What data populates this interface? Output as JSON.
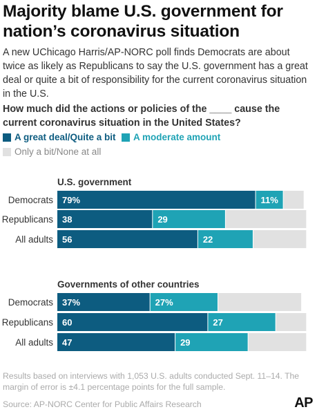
{
  "header": {
    "title": "Majority blame U.S. government for nation’s coronavirus situation",
    "subtitle": "A new UChicago Harris/AP-NORC poll finds Democrats are about twice as likely as Republicans to say the U.S. government has a great deal or quite a bit of responsibility for the current coronavirus situation in the U.S.",
    "question": "How much did the actions or policies of the ____ cause the current coronavirus situation in the United States?"
  },
  "legend": {
    "great": "A great deal/Quite a bit",
    "moderate": "A moderate amount",
    "little": "Only a bit/None at all"
  },
  "colors": {
    "great": "#0d5c80",
    "moderate": "#1fa3b5",
    "little": "#e1e1e1"
  },
  "chart_data": [
    {
      "type": "bar",
      "stacked": true,
      "orientation": "horizontal",
      "title": "U.S. government",
      "categories": [
        "Democrats",
        "Republicans",
        "All adults"
      ],
      "series": [
        {
          "name": "A great deal/Quite a bit",
          "values": [
            79,
            38,
            56
          ],
          "labels": [
            "79%",
            "38",
            "56"
          ]
        },
        {
          "name": "A moderate amount",
          "values": [
            11,
            29,
            22
          ],
          "labels": [
            "11%",
            "29",
            "22"
          ]
        },
        {
          "name": "Only a bit/None at all",
          "values": [
            8,
            32,
            21
          ]
        }
      ],
      "xlim": [
        0,
        100
      ]
    },
    {
      "type": "bar",
      "stacked": true,
      "orientation": "horizontal",
      "title": "Governments of other countries",
      "categories": [
        "Democrats",
        "Republicans",
        "All adults"
      ],
      "series": [
        {
          "name": "A great deal/Quite a bit",
          "values": [
            37,
            60,
            47
          ],
          "labels": [
            "37%",
            "60",
            "47"
          ]
        },
        {
          "name": "A moderate amount",
          "values": [
            27,
            27,
            29
          ],
          "labels": [
            "27%",
            "27",
            "29"
          ]
        },
        {
          "name": "Only a bit/None at all",
          "values": [
            33,
            12,
            23
          ]
        }
      ],
      "xlim": [
        0,
        100
      ]
    }
  ],
  "footer": {
    "note": "Results based on interviews with 1,053 U.S. adults conducted Sept. 11–14. The margin of error is ±4.1 percentage points for the full sample.",
    "source": "Source: AP-NORC Center for Public Affairs Research",
    "logo": "AP"
  }
}
